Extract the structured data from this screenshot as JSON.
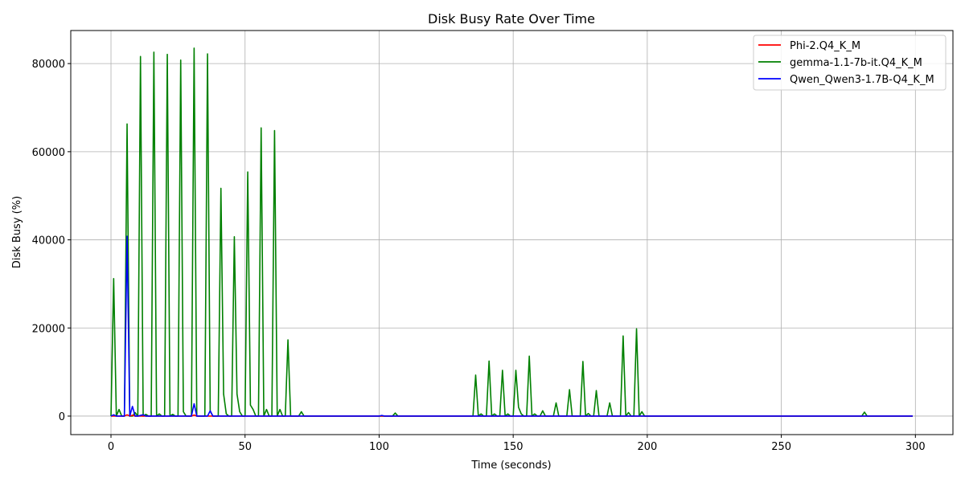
{
  "chart_data": {
    "type": "line",
    "title": "Disk Busy Rate Over Time",
    "xlabel": "Time (seconds)",
    "ylabel": "Disk Busy (%)",
    "xlim": [
      -15,
      314
    ],
    "ylim": [
      -4200,
      87500
    ],
    "xticks": [
      0,
      50,
      100,
      150,
      200,
      250,
      300
    ],
    "yticks": [
      0,
      20000,
      40000,
      60000,
      80000
    ],
    "grid": true,
    "legend_position": "top-right",
    "series": [
      {
        "name": "Phi-2.Q4_K_M",
        "color": "#ff0000",
        "points": [
          [
            0,
            0
          ],
          [
            5,
            0
          ],
          [
            6,
            300
          ],
          [
            7,
            0
          ],
          [
            8,
            200
          ],
          [
            9,
            0
          ],
          [
            30,
            0
          ],
          [
            31,
            250
          ],
          [
            32,
            0
          ],
          [
            60,
            0
          ],
          [
            299,
            0
          ]
        ]
      },
      {
        "name": "gemma-1.1-7b-it.Q4_K_M",
        "color": "#008000",
        "points": [
          [
            0,
            0
          ],
          [
            1,
            31200
          ],
          [
            2,
            0
          ],
          [
            3,
            1500
          ],
          [
            4,
            0
          ],
          [
            5,
            0
          ],
          [
            6,
            66300
          ],
          [
            7,
            0
          ],
          [
            8,
            0
          ],
          [
            9,
            800
          ],
          [
            10,
            0
          ],
          [
            11,
            81600
          ],
          [
            12,
            0
          ],
          [
            13,
            400
          ],
          [
            14,
            0
          ],
          [
            15,
            0
          ],
          [
            16,
            82600
          ],
          [
            17,
            0
          ],
          [
            18,
            500
          ],
          [
            19,
            0
          ],
          [
            20,
            0
          ],
          [
            21,
            82100
          ],
          [
            22,
            0
          ],
          [
            23,
            400
          ],
          [
            24,
            0
          ],
          [
            25,
            0
          ],
          [
            26,
            80800
          ],
          [
            27,
            1000
          ],
          [
            28,
            0
          ],
          [
            29,
            0
          ],
          [
            30,
            0
          ],
          [
            31,
            83500
          ],
          [
            32,
            0
          ],
          [
            33,
            0
          ],
          [
            34,
            0
          ],
          [
            35,
            0
          ],
          [
            36,
            82200
          ],
          [
            37,
            1100
          ],
          [
            38,
            0
          ],
          [
            39,
            0
          ],
          [
            40,
            0
          ],
          [
            41,
            51700
          ],
          [
            42,
            5000
          ],
          [
            43,
            500
          ],
          [
            44,
            0
          ],
          [
            45,
            0
          ],
          [
            46,
            40700
          ],
          [
            47,
            5000
          ],
          [
            48,
            1000
          ],
          [
            49,
            0
          ],
          [
            50,
            0
          ],
          [
            51,
            55400
          ],
          [
            52,
            2500
          ],
          [
            53,
            1500
          ],
          [
            54,
            0
          ],
          [
            55,
            0
          ],
          [
            56,
            65400
          ],
          [
            57,
            0
          ],
          [
            58,
            1500
          ],
          [
            59,
            0
          ],
          [
            60,
            0
          ],
          [
            61,
            64800
          ],
          [
            62,
            0
          ],
          [
            63,
            1500
          ],
          [
            64,
            0
          ],
          [
            65,
            0
          ],
          [
            66,
            17300
          ],
          [
            67,
            0
          ],
          [
            68,
            0
          ],
          [
            69,
            0
          ],
          [
            70,
            0
          ],
          [
            71,
            1000
          ],
          [
            72,
            0
          ],
          [
            100,
            0
          ],
          [
            105,
            0
          ],
          [
            106,
            700
          ],
          [
            107,
            0
          ],
          [
            134,
            0
          ],
          [
            135,
            0
          ],
          [
            136,
            9300
          ],
          [
            137,
            0
          ],
          [
            138,
            500
          ],
          [
            139,
            0
          ],
          [
            140,
            0
          ],
          [
            141,
            12500
          ],
          [
            142,
            0
          ],
          [
            143,
            500
          ],
          [
            144,
            0
          ],
          [
            145,
            0
          ],
          [
            146,
            10400
          ],
          [
            147,
            0
          ],
          [
            148,
            500
          ],
          [
            149,
            0
          ],
          [
            150,
            0
          ],
          [
            151,
            10400
          ],
          [
            152,
            2000
          ],
          [
            153,
            500
          ],
          [
            154,
            0
          ],
          [
            155,
            0
          ],
          [
            156,
            13600
          ],
          [
            157,
            0
          ],
          [
            158,
            500
          ],
          [
            159,
            0
          ],
          [
            160,
            0
          ],
          [
            161,
            1200
          ],
          [
            162,
            0
          ],
          [
            165,
            0
          ],
          [
            166,
            3000
          ],
          [
            167,
            0
          ],
          [
            170,
            0
          ],
          [
            171,
            6000
          ],
          [
            172,
            0
          ],
          [
            175,
            0
          ],
          [
            176,
            12400
          ],
          [
            177,
            0
          ],
          [
            178,
            600
          ],
          [
            179,
            0
          ],
          [
            180,
            0
          ],
          [
            181,
            5800
          ],
          [
            182,
            0
          ],
          [
            185,
            0
          ],
          [
            186,
            3000
          ],
          [
            187,
            0
          ],
          [
            190,
            0
          ],
          [
            191,
            18200
          ],
          [
            192,
            0
          ],
          [
            193,
            800
          ],
          [
            194,
            0
          ],
          [
            195,
            0
          ],
          [
            196,
            19800
          ],
          [
            197,
            0
          ],
          [
            198,
            1000
          ],
          [
            199,
            0
          ],
          [
            280,
            0
          ],
          [
            281,
            900
          ],
          [
            282,
            0
          ],
          [
            299,
            0
          ]
        ]
      },
      {
        "name": "Qwen_Qwen3-1.7B-Q4_K_M",
        "color": "#0000ff",
        "points": [
          [
            0,
            0
          ],
          [
            1,
            300
          ],
          [
            2,
            0
          ],
          [
            5,
            0
          ],
          [
            6,
            40800
          ],
          [
            7,
            0
          ],
          [
            8,
            2200
          ],
          [
            9,
            0
          ],
          [
            10,
            0
          ],
          [
            12,
            300
          ],
          [
            13,
            0
          ],
          [
            30,
            0
          ],
          [
            31,
            2800
          ],
          [
            32,
            0
          ],
          [
            36,
            0
          ],
          [
            37,
            1200
          ],
          [
            38,
            0
          ],
          [
            100,
            0
          ],
          [
            101,
            150
          ],
          [
            102,
            0
          ],
          [
            299,
            0
          ]
        ]
      }
    ]
  }
}
